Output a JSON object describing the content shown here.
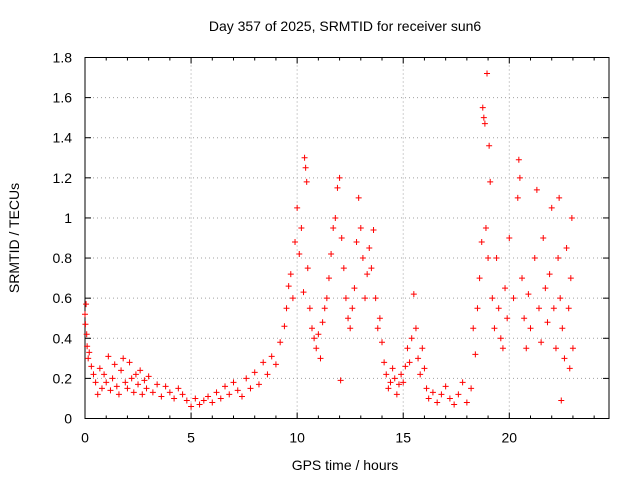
{
  "chart_data": {
    "type": "scatter",
    "title": "Day 357 of 2025, SRMTID for receiver sun6",
    "xlabel": "GPS time / hours",
    "ylabel": "SRMTID / TECUs",
    "xlim": [
      0,
      24.7
    ],
    "ylim": [
      0,
      1.8
    ],
    "xticks": [
      0,
      5,
      10,
      15,
      20
    ],
    "xtick_labels": [
      "0",
      "5",
      "10",
      "15",
      "20"
    ],
    "yticks": [
      0,
      0.2,
      0.4,
      0.6,
      0.8,
      1.0,
      1.2,
      1.4,
      1.6,
      1.8
    ],
    "ytick_labels": [
      "0",
      "0.2",
      "0.4",
      "0.6",
      "0.8",
      "1",
      "1.2",
      "1.4",
      "1.6",
      "1.8"
    ],
    "grid": true,
    "marker": "+",
    "color": "#ff0000",
    "series": [
      {
        "name": "SRMTID",
        "points": [
          [
            0.0,
            0.52
          ],
          [
            0.02,
            0.47
          ],
          [
            0.05,
            0.57
          ],
          [
            0.08,
            0.42
          ],
          [
            0.1,
            0.36
          ],
          [
            0.15,
            0.3
          ],
          [
            0.2,
            0.33
          ],
          [
            0.3,
            0.26
          ],
          [
            0.4,
            0.22
          ],
          [
            0.5,
            0.18
          ],
          [
            0.6,
            0.12
          ],
          [
            0.7,
            0.25
          ],
          [
            0.8,
            0.15
          ],
          [
            0.9,
            0.22
          ],
          [
            1.0,
            0.18
          ],
          [
            1.1,
            0.31
          ],
          [
            1.2,
            0.14
          ],
          [
            1.3,
            0.2
          ],
          [
            1.4,
            0.27
          ],
          [
            1.5,
            0.16
          ],
          [
            1.6,
            0.12
          ],
          [
            1.7,
            0.24
          ],
          [
            1.8,
            0.3
          ],
          [
            1.9,
            0.18
          ],
          [
            2.0,
            0.15
          ],
          [
            2.1,
            0.28
          ],
          [
            2.2,
            0.2
          ],
          [
            2.3,
            0.13
          ],
          [
            2.4,
            0.22
          ],
          [
            2.5,
            0.17
          ],
          [
            2.6,
            0.24
          ],
          [
            2.7,
            0.12
          ],
          [
            2.8,
            0.19
          ],
          [
            2.9,
            0.15
          ],
          [
            3.0,
            0.21
          ],
          [
            3.2,
            0.13
          ],
          [
            3.4,
            0.17
          ],
          [
            3.6,
            0.11
          ],
          [
            3.8,
            0.16
          ],
          [
            4.0,
            0.13
          ],
          [
            4.2,
            0.1
          ],
          [
            4.4,
            0.15
          ],
          [
            4.6,
            0.12
          ],
          [
            4.8,
            0.09
          ],
          [
            5.0,
            0.06
          ],
          [
            5.2,
            0.1
          ],
          [
            5.4,
            0.07
          ],
          [
            5.6,
            0.09
          ],
          [
            5.8,
            0.11
          ],
          [
            6.0,
            0.08
          ],
          [
            6.2,
            0.13
          ],
          [
            6.4,
            0.1
          ],
          [
            6.6,
            0.16
          ],
          [
            6.8,
            0.12
          ],
          [
            7.0,
            0.18
          ],
          [
            7.2,
            0.14
          ],
          [
            7.4,
            0.11
          ],
          [
            7.6,
            0.2
          ],
          [
            7.8,
            0.15
          ],
          [
            8.0,
            0.23
          ],
          [
            8.2,
            0.17
          ],
          [
            8.4,
            0.28
          ],
          [
            8.6,
            0.22
          ],
          [
            8.8,
            0.31
          ],
          [
            9.0,
            0.27
          ],
          [
            9.2,
            0.38
          ],
          [
            9.4,
            0.46
          ],
          [
            9.5,
            0.55
          ],
          [
            9.6,
            0.66
          ],
          [
            9.7,
            0.72
          ],
          [
            9.8,
            0.6
          ],
          [
            9.9,
            0.88
          ],
          [
            10.0,
            1.05
          ],
          [
            10.1,
            0.82
          ],
          [
            10.2,
            0.95
          ],
          [
            10.3,
            0.63
          ],
          [
            10.35,
            1.3
          ],
          [
            10.4,
            1.25
          ],
          [
            10.45,
            1.18
          ],
          [
            10.5,
            0.75
          ],
          [
            10.6,
            0.55
          ],
          [
            10.7,
            0.45
          ],
          [
            10.8,
            0.4
          ],
          [
            10.9,
            0.35
          ],
          [
            11.0,
            0.42
          ],
          [
            11.1,
            0.3
          ],
          [
            11.2,
            0.48
          ],
          [
            11.3,
            0.55
          ],
          [
            11.4,
            0.6
          ],
          [
            11.5,
            0.7
          ],
          [
            11.6,
            0.82
          ],
          [
            11.7,
            0.95
          ],
          [
            11.8,
            1.0
          ],
          [
            11.9,
            1.15
          ],
          [
            12.0,
            1.2
          ],
          [
            12.05,
            0.19
          ],
          [
            12.1,
            0.9
          ],
          [
            12.2,
            0.75
          ],
          [
            12.3,
            0.6
          ],
          [
            12.4,
            0.5
          ],
          [
            12.5,
            0.45
          ],
          [
            12.6,
            0.55
          ],
          [
            12.7,
            0.65
          ],
          [
            12.8,
            0.88
          ],
          [
            12.9,
            1.1
          ],
          [
            13.0,
            0.95
          ],
          [
            13.1,
            0.8
          ],
          [
            13.2,
            0.6
          ],
          [
            13.3,
            0.72
          ],
          [
            13.4,
            0.85
          ],
          [
            13.5,
            0.75
          ],
          [
            13.6,
            0.94
          ],
          [
            13.7,
            0.6
          ],
          [
            13.8,
            0.45
          ],
          [
            13.9,
            0.5
          ],
          [
            14.0,
            0.38
          ],
          [
            14.1,
            0.28
          ],
          [
            14.2,
            0.22
          ],
          [
            14.3,
            0.15
          ],
          [
            14.4,
            0.18
          ],
          [
            14.5,
            0.25
          ],
          [
            14.6,
            0.2
          ],
          [
            14.7,
            0.12
          ],
          [
            14.8,
            0.17
          ],
          [
            14.9,
            0.22
          ],
          [
            15.0,
            0.18
          ],
          [
            15.1,
            0.26
          ],
          [
            15.2,
            0.35
          ],
          [
            15.3,
            0.28
          ],
          [
            15.4,
            0.4
          ],
          [
            15.5,
            0.62
          ],
          [
            15.6,
            0.45
          ],
          [
            15.7,
            0.3
          ],
          [
            15.8,
            0.22
          ],
          [
            15.9,
            0.35
          ],
          [
            16.0,
            0.25
          ],
          [
            16.1,
            0.15
          ],
          [
            16.2,
            0.1
          ],
          [
            16.4,
            0.13
          ],
          [
            16.6,
            0.08
          ],
          [
            16.8,
            0.12
          ],
          [
            17.0,
            0.16
          ],
          [
            17.2,
            0.1
          ],
          [
            17.4,
            0.07
          ],
          [
            17.6,
            0.12
          ],
          [
            17.8,
            0.18
          ],
          [
            18.0,
            0.08
          ],
          [
            18.2,
            0.15
          ],
          [
            18.3,
            0.45
          ],
          [
            18.4,
            0.32
          ],
          [
            18.5,
            0.55
          ],
          [
            18.6,
            0.7
          ],
          [
            18.7,
            0.88
          ],
          [
            18.75,
            1.55
          ],
          [
            18.8,
            1.5
          ],
          [
            18.85,
            1.47
          ],
          [
            18.9,
            0.95
          ],
          [
            18.95,
            1.72
          ],
          [
            19.0,
            0.8
          ],
          [
            19.05,
            1.36
          ],
          [
            19.1,
            1.18
          ],
          [
            19.2,
            0.6
          ],
          [
            19.3,
            0.45
          ],
          [
            19.4,
            0.8
          ],
          [
            19.5,
            0.55
          ],
          [
            19.6,
            0.4
          ],
          [
            19.7,
            0.35
          ],
          [
            19.8,
            0.65
          ],
          [
            19.9,
            0.5
          ],
          [
            20.0,
            0.9
          ],
          [
            20.2,
            0.6
          ],
          [
            20.4,
            1.1
          ],
          [
            20.45,
            1.29
          ],
          [
            20.5,
            1.2
          ],
          [
            20.6,
            0.7
          ],
          [
            20.7,
            0.5
          ],
          [
            20.8,
            0.35
          ],
          [
            20.9,
            0.62
          ],
          [
            21.0,
            0.45
          ],
          [
            21.2,
            0.8
          ],
          [
            21.3,
            1.14
          ],
          [
            21.4,
            0.55
          ],
          [
            21.5,
            0.38
          ],
          [
            21.6,
            0.9
          ],
          [
            21.7,
            0.65
          ],
          [
            21.8,
            0.48
          ],
          [
            21.9,
            0.72
          ],
          [
            22.0,
            1.05
          ],
          [
            22.1,
            0.55
          ],
          [
            22.2,
            0.35
          ],
          [
            22.3,
            0.8
          ],
          [
            22.35,
            1.1
          ],
          [
            22.4,
            0.6
          ],
          [
            22.45,
            0.09
          ],
          [
            22.5,
            0.45
          ],
          [
            22.6,
            0.3
          ],
          [
            22.7,
            0.85
          ],
          [
            22.8,
            0.55
          ],
          [
            22.85,
            0.25
          ],
          [
            22.9,
            0.7
          ],
          [
            22.95,
            1.0
          ],
          [
            23.0,
            0.35
          ]
        ]
      }
    ]
  }
}
